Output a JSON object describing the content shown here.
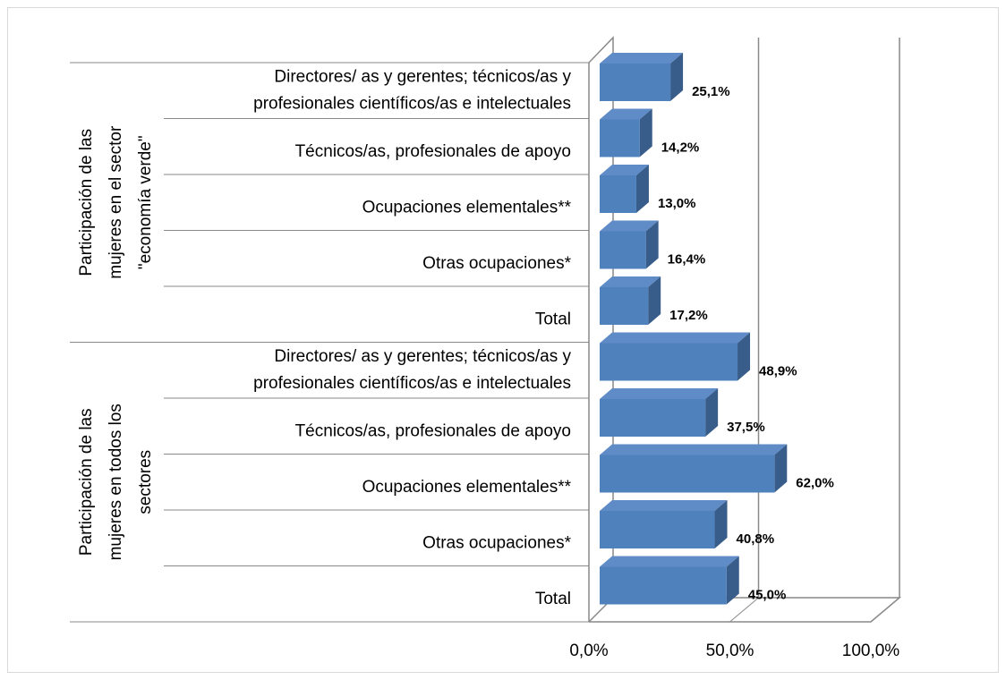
{
  "chart_data": {
    "type": "bar",
    "orientation": "horizontal",
    "three_d": true,
    "color": "#4f81bd",
    "groups": [
      {
        "label": [
          "Participación de las",
          "mujeres en el sector",
          "\"economía verde\""
        ],
        "categories": [
          [
            "Directores/ as y gerentes; técnicos/as y",
            "profesionales científicos/as e intelectuales"
          ],
          [
            "Técnicos/as, profesionales de apoyo"
          ],
          [
            "Ocupaciones elementales**"
          ],
          [
            "Otras ocupaciones*"
          ],
          [
            "Total"
          ]
        ],
        "values": [
          25.1,
          14.2,
          13.0,
          16.4,
          17.2
        ],
        "value_labels": [
          "25,1%",
          "14,2%",
          "13,0%",
          "16,4%",
          "17,2%"
        ]
      },
      {
        "label": [
          "Participación de las",
          "mujeres en todos los",
          "sectores"
        ],
        "categories": [
          [
            "Directores/ as y gerentes; técnicos/as y",
            "profesionales científicos/as e intelectuales"
          ],
          [
            "Técnicos/as, profesionales de apoyo"
          ],
          [
            "Ocupaciones elementales**"
          ],
          [
            "Otras ocupaciones*"
          ],
          [
            "Total"
          ]
        ],
        "values": [
          48.9,
          37.5,
          62.0,
          40.8,
          45.0
        ],
        "value_labels": [
          "48,9%",
          "37,5%",
          "62,0%",
          "40,8%",
          "45,0%"
        ]
      }
    ],
    "xlim": [
      0,
      100
    ],
    "xticks": [
      {
        "value": 0,
        "label": "0,0%"
      },
      {
        "value": 50,
        "label": "50,0%"
      },
      {
        "value": 100,
        "label": "100,0%"
      }
    ],
    "grid": true
  }
}
